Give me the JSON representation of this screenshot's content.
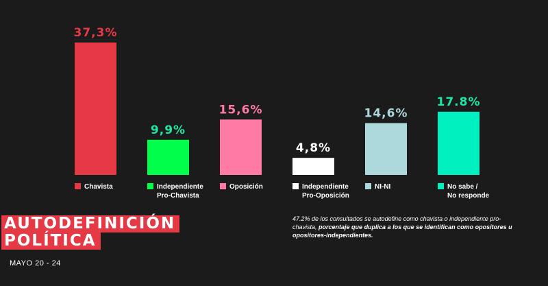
{
  "title": {
    "line1": "AUTODEFINICIÓN",
    "line2": "POLÍTICA"
  },
  "date": "MAYO 20 - 24",
  "note": {
    "regular": "47.2% de los consultados se autodefine como chavista  o  independiente pro-chavista,",
    "bold": "porcentaje que duplica a los que se identifican como opositores u opositores-independientes."
  },
  "chart_data": {
    "type": "bar",
    "categories": [
      "Chavista",
      "Independiente Pro-Chavista",
      "Oposición",
      "Independiente Pro-Oposición",
      "NI-NI",
      "No sabe / No responde"
    ],
    "values": [
      37.3,
      9.9,
      15.6,
      4.8,
      14.6,
      17.8
    ],
    "value_labels": [
      "37,3%",
      "9,9%",
      "15,6%",
      "4,8%",
      "14,6%",
      "17.8%"
    ],
    "legend_lines": [
      [
        "Chavista"
      ],
      [
        "Independiente",
        "Pro-Chavista"
      ],
      [
        "Oposición"
      ],
      [
        "Independiente",
        "Pro-Oposición"
      ],
      [
        "NI-NI"
      ],
      [
        "No sabe /",
        "No responde"
      ]
    ],
    "colors": [
      "#e63946",
      "#00ff4a",
      "#ff7ba5",
      "#ffffff",
      "#add8dc",
      "#00f0c0"
    ],
    "label_colors": [
      "#e63946",
      "#1ee8a8",
      "#ff7ba5",
      "#ffffff",
      "#add8dc",
      "#1ee8a8"
    ],
    "ylim": [
      0,
      40
    ],
    "xlabel": "",
    "ylabel": ""
  }
}
